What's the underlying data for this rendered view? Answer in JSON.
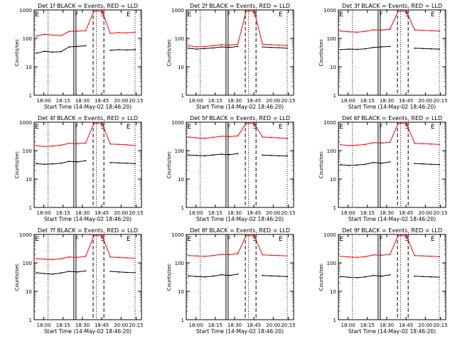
{
  "chart_data": [
    {
      "type": "line",
      "title": "Det 1f BLACK = Events, RED = LLD",
      "xlabel": "Start Time (14-May-02 18:46:20)",
      "ylabel": "Counts/sec",
      "ylim": [
        1,
        1000
      ],
      "y_scale": "log",
      "x_tick_labels": [
        "18:00",
        "18:15",
        "18:30",
        "18:45",
        "20:00",
        "20:15"
      ],
      "y_tick_labels": [
        "1",
        "10",
        "100",
        "1000"
      ],
      "markers": [
        "E",
        "F",
        "S",
        "E"
      ],
      "series": [
        {
          "color": "#ff0000",
          "values": [
            120,
            140,
            130,
            125,
            175,
            180,
            185,
            900,
            900,
            150,
            160,
            155,
            165
          ]
        },
        {
          "color": "#000000",
          "values": [
            30,
            35,
            33,
            34,
            50,
            52,
            55,
            null,
            null,
            38,
            40,
            39,
            40
          ]
        }
      ]
    },
    {
      "type": "line",
      "title": "Det 2f BLACK = Events, RED = LLD",
      "xlabel": "Start Time (14-May-02 18:46:20)",
      "ylabel": "Counts/sec",
      "ylim": [
        1,
        1000
      ],
      "y_scale": "log",
      "x_tick_labels": [
        "18:00",
        "18:15",
        "18:30",
        "18:45",
        "20:00",
        "20:15"
      ],
      "y_tick_labels": [
        "1",
        "10",
        "100",
        "1000"
      ],
      "markers": [
        "E",
        "F",
        "S",
        "E"
      ],
      "series": [
        {
          "color": "#ff0000",
          "values": [
            55,
            50,
            52,
            55,
            60,
            58,
            62,
            900,
            900,
            62,
            60,
            58,
            55
          ]
        },
        {
          "color": "#000000",
          "values": [
            45,
            42,
            44,
            46,
            50,
            48,
            52,
            null,
            null,
            50,
            48,
            47,
            45
          ]
        }
      ]
    },
    {
      "type": "line",
      "title": "Det 3f BLACK = Events, RED = LLD",
      "xlabel": "Start Time (14-May-02 18:46:20)",
      "ylabel": "Counts/sec",
      "ylim": [
        1,
        1000
      ],
      "y_scale": "log",
      "x_tick_labels": [
        "18:00",
        "18:15",
        "18:30",
        "18:45",
        "20:00",
        "20:15"
      ],
      "y_tick_labels": [
        "1",
        "10",
        "100",
        "1000"
      ],
      "markers": [
        "E",
        "F",
        "S",
        "E"
      ],
      "series": [
        {
          "color": "#ff0000",
          "values": [
            180,
            170,
            165,
            175,
            200,
            195,
            210,
            900,
            900,
            200,
            190,
            185,
            180
          ]
        },
        {
          "color": "#000000",
          "values": [
            40,
            42,
            41,
            43,
            48,
            50,
            52,
            null,
            null,
            45,
            44,
            43,
            42
          ]
        }
      ]
    },
    {
      "type": "line",
      "title": "Det 4f BLACK = Events, RED = LLD",
      "xlabel": "Start Time (14-May-02 18:46:20)",
      "ylabel": "Counts/sec",
      "ylim": [
        1,
        1000
      ],
      "y_scale": "log",
      "x_tick_labels": [
        "18:00",
        "18:15",
        "18:30",
        "18:45",
        "20:00",
        "20:15"
      ],
      "y_tick_labels": [
        "1",
        "10",
        "100",
        "1000"
      ],
      "markers": [
        "E",
        "F",
        "S",
        "E"
      ],
      "series": [
        {
          "color": "#ff0000",
          "values": [
            150,
            140,
            145,
            155,
            180,
            175,
            185,
            900,
            900,
            170,
            165,
            160,
            150
          ]
        },
        {
          "color": "#000000",
          "values": [
            35,
            33,
            34,
            36,
            42,
            40,
            44,
            null,
            null,
            38,
            37,
            36,
            35
          ]
        }
      ]
    },
    {
      "type": "line",
      "title": "Det 5f BLACK = Events, RED = LLD",
      "xlabel": "Start Time (14-May-02 18:46:20)",
      "ylabel": "Counts/sec",
      "ylim": [
        1,
        1000
      ],
      "y_scale": "log",
      "x_tick_labels": [
        "18:00",
        "18:15",
        "18:30",
        "18:45",
        "20:00",
        "20:15"
      ],
      "y_tick_labels": [
        "1",
        "10",
        "100",
        "1000"
      ],
      "markers": [
        "E",
        "F",
        "S",
        "E"
      ],
      "series": [
        {
          "color": "#ff0000",
          "values": [
            300,
            280,
            270,
            290,
            320,
            310,
            330,
            900,
            900,
            300,
            290,
            280,
            270
          ]
        },
        {
          "color": "#000000",
          "values": [
            70,
            68,
            66,
            70,
            75,
            72,
            78,
            null,
            null,
            70,
            68,
            66,
            65
          ]
        }
      ]
    },
    {
      "type": "line",
      "title": "Det 6f BLACK = Events, RED = LLD",
      "xlabel": "Start Time (14-May-02 18:46:20)",
      "ylabel": "Counts/sec",
      "ylim": [
        1,
        1000
      ],
      "y_scale": "log",
      "x_tick_labels": [
        "18:00",
        "18:15",
        "18:30",
        "18:45",
        "20:00",
        "20:15"
      ],
      "y_tick_labels": [
        "1",
        "10",
        "100",
        "1000"
      ],
      "markers": [
        "E",
        "F",
        "S",
        "E"
      ],
      "series": [
        {
          "color": "#ff0000",
          "values": [
            160,
            150,
            155,
            165,
            190,
            185,
            195,
            900,
            900,
            180,
            175,
            170,
            165
          ]
        },
        {
          "color": "#000000",
          "values": [
            32,
            30,
            31,
            33,
            38,
            36,
            40,
            null,
            null,
            35,
            34,
            33,
            32
          ]
        }
      ]
    },
    {
      "type": "line",
      "title": "Det 7f BLACK = Events, RED = LLD",
      "xlabel": "Start Time (14-May-02 18:46:20)",
      "ylabel": "Counts/sec",
      "ylim": [
        1,
        1000
      ],
      "y_scale": "log",
      "x_tick_labels": [
        "18:00",
        "18:15",
        "18:30",
        "18:45",
        "20:00",
        "20:15"
      ],
      "y_tick_labels": [
        "1",
        "10",
        "100",
        "1000"
      ],
      "markers": [
        "E",
        "F",
        "S",
        "E"
      ],
      "series": [
        {
          "color": "#ff0000",
          "values": [
            140,
            135,
            130,
            140,
            160,
            155,
            170,
            900,
            900,
            160,
            155,
            150,
            145
          ]
        },
        {
          "color": "#000000",
          "values": [
            45,
            42,
            40,
            44,
            50,
            48,
            52,
            null,
            null,
            50,
            48,
            46,
            45
          ]
        }
      ]
    },
    {
      "type": "line",
      "title": "Det 8f BLACK = Events, RED = LLD",
      "xlabel": "Start Time (14-May-02 18:46:20)",
      "ylabel": "Counts/sec",
      "ylim": [
        1,
        1000
      ],
      "y_scale": "log",
      "x_tick_labels": [
        "18:00",
        "18:15",
        "18:30",
        "18:45",
        "20:00",
        "20:15"
      ],
      "y_tick_labels": [
        "1",
        "10",
        "100",
        "1000"
      ],
      "markers": [
        "E",
        "F",
        "S",
        "E"
      ],
      "series": [
        {
          "color": "#ff0000",
          "values": [
            180,
            175,
            170,
            180,
            200,
            195,
            210,
            900,
            900,
            190,
            185,
            180,
            175
          ]
        },
        {
          "color": "#000000",
          "values": [
            35,
            33,
            32,
            34,
            38,
            36,
            40,
            null,
            null,
            36,
            35,
            34,
            33
          ]
        }
      ]
    },
    {
      "type": "line",
      "title": "Det 9f BLACK = Events, RED = LLD",
      "xlabel": "Start Time (14-May-02 18:46:20)",
      "ylabel": "Counts/sec",
      "ylim": [
        1,
        1000
      ],
      "y_scale": "log",
      "x_tick_labels": [
        "18:00",
        "18:15",
        "18:30",
        "18:45",
        "20:00",
        "20:15"
      ],
      "y_tick_labels": [
        "1",
        "10",
        "100",
        "1000"
      ],
      "markers": [
        "E",
        "F",
        "S",
        "E"
      ],
      "series": [
        {
          "color": "#ff0000",
          "values": [
            170,
            160,
            155,
            165,
            190,
            185,
            200,
            900,
            900,
            180,
            175,
            170,
            165
          ]
        },
        {
          "color": "#000000",
          "values": [
            33,
            31,
            30,
            32,
            36,
            34,
            38,
            null,
            null,
            34,
            33,
            32,
            31
          ]
        }
      ]
    }
  ]
}
